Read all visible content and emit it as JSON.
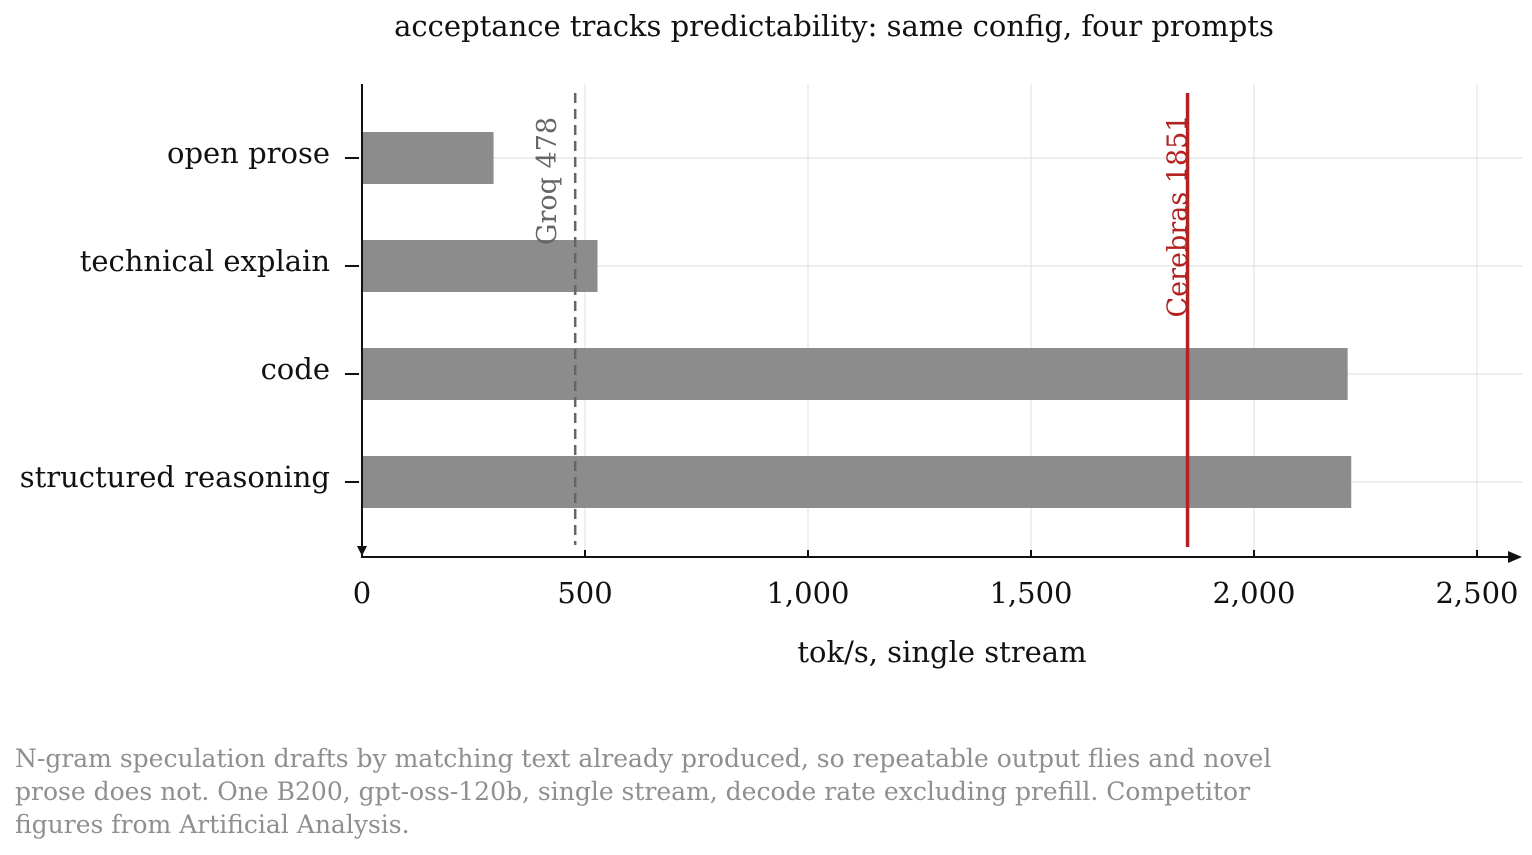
{
  "chart_data": {
    "type": "bar",
    "orientation": "horizontal",
    "title": "acceptance tracks predictability: same config, four prompts",
    "xlabel": "tok/s, single stream",
    "ylabel": "",
    "categories": [
      "open prose",
      "technical explain",
      "code",
      "structured reasoning"
    ],
    "values": [
      295,
      528,
      2210,
      2218
    ],
    "xlim": [
      0,
      2500
    ],
    "xticks": [
      0,
      500,
      1000,
      1500,
      2000,
      2500
    ],
    "xtick_labels": [
      "0",
      "500",
      "1,000",
      "1,500",
      "2,000",
      "2,500"
    ],
    "grid": true,
    "bar_color": "#8c8c8c",
    "reference_lines": [
      {
        "label": "Groq 478",
        "value": 478,
        "style": "dashed",
        "color": "#666666"
      },
      {
        "label": "Cerebras 1851",
        "value": 1851,
        "style": "solid",
        "color": "#b22222"
      }
    ]
  },
  "caption": "N-gram speculation drafts by matching text already produced, so repeatable output flies and novel prose does not.  One B200, gpt-oss-120b, single stream, decode rate excluding prefill.  Competitor figures from Artificial Analysis."
}
